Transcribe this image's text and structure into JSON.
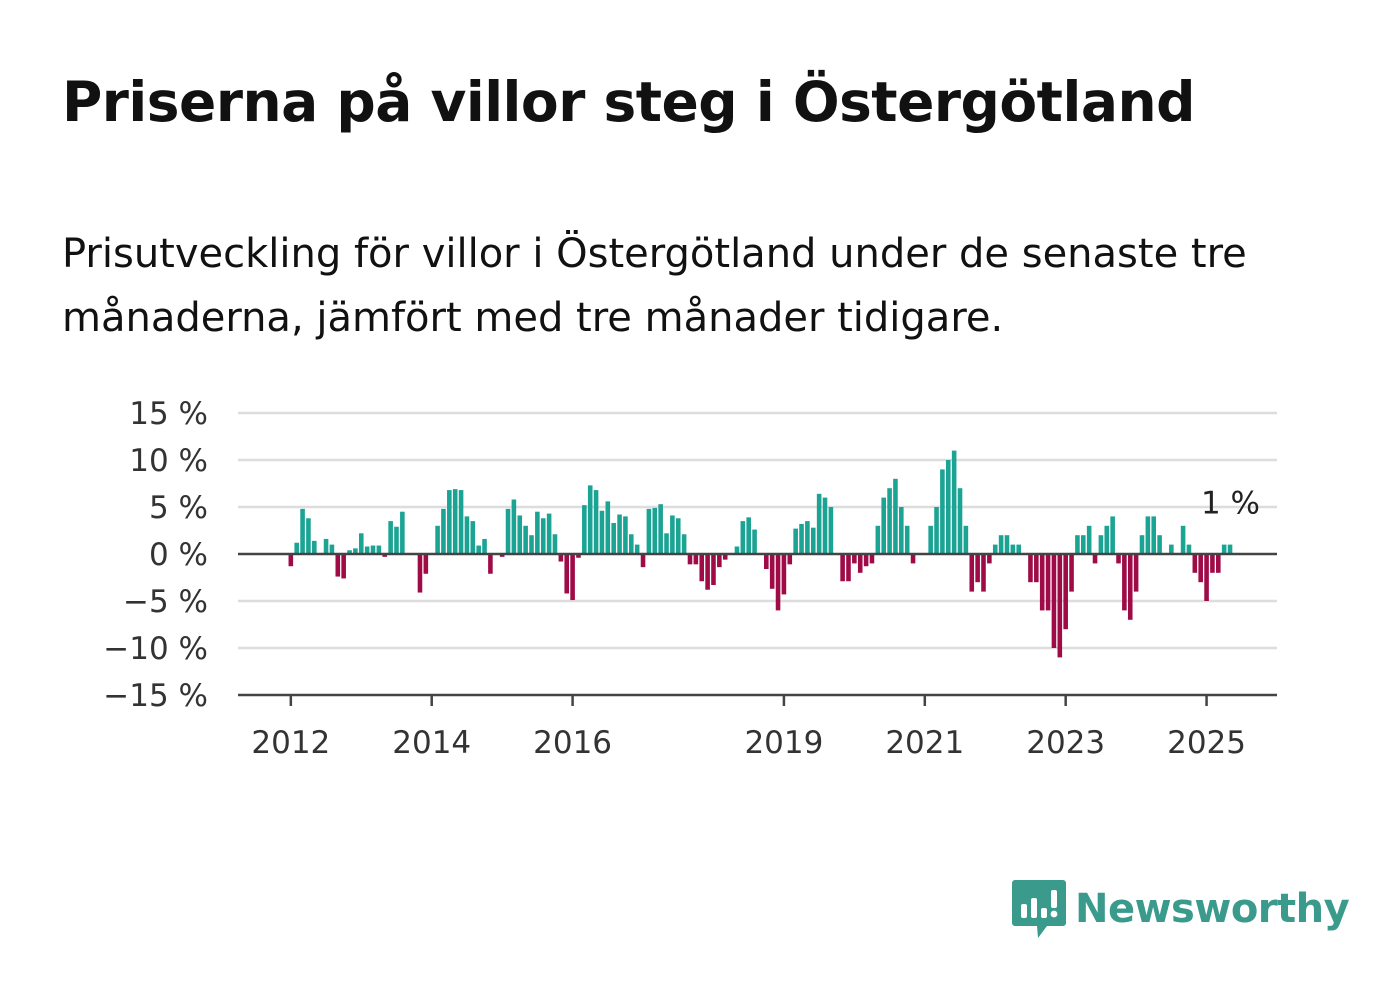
{
  "title": "Priserna på villor steg i Östergötland",
  "subtitle": "Prisutveckling för villor i Östergötland under de senaste tre månaderna, jämfört med tre månader tidigare.",
  "logo": {
    "text": "Newsworthy",
    "icon": "newsworthy-logo-icon",
    "color": "#3a9a8c"
  },
  "chart_data": {
    "type": "bar",
    "ylim": [
      -15,
      15
    ],
    "xlim": [
      "2011-04",
      "2026-01"
    ],
    "grid": true,
    "colors": {
      "positive": "#1ba394",
      "negative": "#9e0b47"
    },
    "yticks": [
      {
        "value": 15,
        "label": "15 %"
      },
      {
        "value": 10,
        "label": "10 %"
      },
      {
        "value": 5,
        "label": "5 %"
      },
      {
        "value": 0,
        "label": "0 %"
      },
      {
        "value": -5,
        "label": "−5 %"
      },
      {
        "value": -10,
        "label": "−10 %"
      },
      {
        "value": -15,
        "label": "−15 %"
      }
    ],
    "xticks": [
      {
        "value": "2012-01",
        "label": "2012"
      },
      {
        "value": "2014-01",
        "label": "2014"
      },
      {
        "value": "2016-01",
        "label": "2016"
      },
      {
        "value": "2019-01",
        "label": "2019"
      },
      {
        "value": "2021-01",
        "label": "2021"
      },
      {
        "value": "2023-01",
        "label": "2023"
      },
      {
        "value": "2025-01",
        "label": "2025"
      }
    ],
    "annotation": {
      "text": "1 %",
      "x": "2025-05",
      "y": 1
    },
    "x": [
      "2012-01",
      "2012-02",
      "2012-03",
      "2012-04",
      "2012-05",
      "2012-06",
      "2012-07",
      "2012-08",
      "2012-09",
      "2012-10",
      "2012-11",
      "2012-12",
      "2013-01",
      "2013-02",
      "2013-03",
      "2013-04",
      "2013-05",
      "2013-06",
      "2013-07",
      "2013-08",
      "2013-09",
      "2013-10",
      "2013-11",
      "2013-12",
      "2014-01",
      "2014-02",
      "2014-03",
      "2014-04",
      "2014-05",
      "2014-06",
      "2014-07",
      "2014-08",
      "2014-09",
      "2014-10",
      "2014-11",
      "2014-12",
      "2015-01",
      "2015-02",
      "2015-03",
      "2015-04",
      "2015-05",
      "2015-06",
      "2015-07",
      "2015-08",
      "2015-09",
      "2015-10",
      "2015-11",
      "2015-12",
      "2016-01",
      "2016-02",
      "2016-03",
      "2016-04",
      "2016-05",
      "2016-06",
      "2016-07",
      "2016-08",
      "2016-09",
      "2016-10",
      "2016-11",
      "2016-12",
      "2017-01",
      "2017-02",
      "2017-03",
      "2017-04",
      "2017-05",
      "2017-06",
      "2017-07",
      "2017-08",
      "2017-09",
      "2017-10",
      "2017-11",
      "2017-12",
      "2018-01",
      "2018-02",
      "2018-03",
      "2018-04",
      "2018-05",
      "2018-06",
      "2018-07",
      "2018-08",
      "2018-09",
      "2018-10",
      "2018-11",
      "2018-12",
      "2019-01",
      "2019-02",
      "2019-03",
      "2019-04",
      "2019-05",
      "2019-06",
      "2019-07",
      "2019-08",
      "2019-09",
      "2019-10",
      "2019-11",
      "2019-12",
      "2020-01",
      "2020-02",
      "2020-03",
      "2020-04",
      "2020-05",
      "2020-06",
      "2020-07",
      "2020-08",
      "2020-09",
      "2020-10",
      "2020-11",
      "2020-12",
      "2021-01",
      "2021-02",
      "2021-03",
      "2021-04",
      "2021-05",
      "2021-06",
      "2021-07",
      "2021-08",
      "2021-09",
      "2021-10",
      "2021-11",
      "2021-12",
      "2022-01",
      "2022-02",
      "2022-03",
      "2022-04",
      "2022-05",
      "2022-06",
      "2022-07",
      "2022-08",
      "2022-09",
      "2022-10",
      "2022-11",
      "2022-12",
      "2023-01",
      "2023-02",
      "2023-03",
      "2023-04",
      "2023-05",
      "2023-06",
      "2023-07",
      "2023-08",
      "2023-09",
      "2023-10",
      "2023-11",
      "2023-12",
      "2024-01",
      "2024-02",
      "2024-03",
      "2024-04",
      "2024-05",
      "2024-06",
      "2024-07",
      "2024-08",
      "2024-09",
      "2024-10",
      "2024-11",
      "2024-12",
      "2025-01",
      "2025-02",
      "2025-03",
      "2025-04",
      "2025-05"
    ],
    "values": [
      -1.3,
      1.2,
      4.8,
      3.8,
      1.4,
      0,
      1.6,
      1.0,
      -2.4,
      -2.6,
      0.4,
      0.6,
      2.2,
      0.8,
      0.9,
      0.9,
      -0.3,
      3.5,
      2.9,
      4.5,
      0,
      0,
      -4.1,
      -2.1,
      0,
      3.0,
      4.8,
      6.8,
      6.9,
      6.8,
      4.0,
      3.5,
      0.9,
      1.6,
      -2.1,
      0,
      -0.3,
      4.8,
      5.8,
      4.1,
      3.0,
      2.0,
      4.5,
      3.8,
      4.3,
      2.1,
      -0.8,
      -4.2,
      -4.9,
      -0.4,
      5.2,
      7.3,
      6.8,
      4.6,
      5.6,
      3.3,
      4.2,
      4.0,
      2.1,
      1.0,
      -1.4,
      4.8,
      4.9,
      5.3,
      2.2,
      4.1,
      3.8,
      2.1,
      -1.1,
      -1.1,
      -2.9,
      -3.8,
      -3.3,
      -1.4,
      -0.6,
      0,
      0.8,
      3.5,
      3.9,
      2.6,
      0,
      -1.6,
      -3.7,
      -6.0,
      -4.3,
      -1.1,
      2.7,
      3.2,
      3.5,
      2.8,
      6.4,
      6.0,
      5.0,
      0,
      -2.9,
      -2.9,
      -1.0,
      -2.0,
      -1.3,
      -1.0,
      3.0,
      6.0,
      7.0,
      8.0,
      5.0,
      3.0,
      -1.0,
      0,
      0,
      3.0,
      5.0,
      9.0,
      10.0,
      11.0,
      7.0,
      3.0,
      -4.0,
      -3.0,
      -4.0,
      -1.0,
      1.0,
      2.0,
      2.0,
      1.0,
      1.0,
      0,
      -3.0,
      -3.0,
      -6.0,
      -6.0,
      -10.0,
      -11.0,
      -8.0,
      -4.0,
      2.0,
      2.0,
      3.0,
      -1.0,
      2.0,
      3.0,
      4.0,
      -1.0,
      -6.0,
      -7.0,
      -4.0,
      2.0,
      4.0,
      4.0,
      2.0,
      0,
      1.0,
      0,
      3.0,
      1.0,
      -2.0,
      -3.0,
      -5.0,
      -2.0,
      -2.0,
      1.0,
      1.0
    ]
  }
}
